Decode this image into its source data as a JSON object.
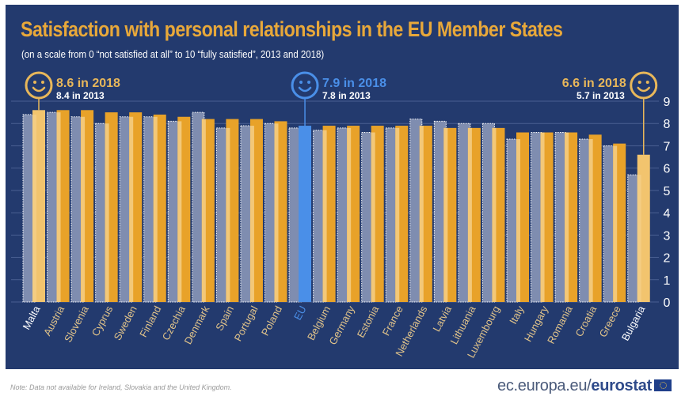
{
  "header": {
    "title": "Satisfaction with personal relationships in the EU Member States",
    "subtitle": "(on a scale from 0 “not satisfied at all” to 10 “fully satisfied”, 2013 and 2018)"
  },
  "callouts": [
    {
      "country": "Malta",
      "line1": "8.6 in 2018",
      "line2": "8.4 in 2013",
      "icon": "smiley-icon",
      "color": "#e8b75a"
    },
    {
      "country": "EU",
      "line1": "7.9 in 2018",
      "line2": "7.8 in 2013",
      "icon": "smiley-icon",
      "color": "#4a8fe8"
    },
    {
      "country": "Bulgaria",
      "line1": "6.6 in 2018",
      "line2": "5.7 in 2013",
      "icon": "smiley-icon",
      "color": "#e8b75a"
    }
  ],
  "colors": {
    "background": "#233a6e",
    "bar_2013": "#7f8db0",
    "bar_2018": "#e8a229",
    "bar_2018_light": "#f2c46e",
    "bar_eu": "#4a8fe8",
    "accent": "#e8a83a",
    "label_country": "#e2c48a",
    "label_highlight": "#ffffff",
    "label_eu": "#4a8fe8"
  },
  "chart_data": {
    "type": "bar",
    "title": "Satisfaction with personal relationships in the EU Member States",
    "subtitle": "(on a scale from 0 “not satisfied at all” to 10 “fully satisfied”, 2013 and 2018)",
    "xlabel": "",
    "ylabel": "",
    "ylim": [
      0,
      9
    ],
    "yticks": [
      0,
      1,
      2,
      3,
      4,
      5,
      6,
      7,
      8,
      9
    ],
    "grid": true,
    "categories": [
      "Malta",
      "Austria",
      "Slovenia",
      "Cyprus",
      "Sweden",
      "Finland",
      "Czechia",
      "Denmark",
      "Spain",
      "Portugal",
      "Poland",
      "EU",
      "Belgium",
      "Germany",
      "Estonia",
      "France",
      "Netherlands",
      "Latvia",
      "Lithuania",
      "Luxembourg",
      "Italy",
      "Hungary",
      "Romania",
      "Croatia",
      "Greece",
      "Bulgaria"
    ],
    "highlighted": [
      "Malta",
      "EU",
      "Bulgaria"
    ],
    "series": [
      {
        "name": "2013",
        "values": [
          8.4,
          8.5,
          8.3,
          8.0,
          8.3,
          8.3,
          8.1,
          8.5,
          7.8,
          7.9,
          8.0,
          7.8,
          7.7,
          7.8,
          7.6,
          7.8,
          8.2,
          8.1,
          8.0,
          8.0,
          7.3,
          7.6,
          7.6,
          7.3,
          7.0,
          5.7
        ]
      },
      {
        "name": "2018",
        "values": [
          8.6,
          8.6,
          8.6,
          8.5,
          8.5,
          8.4,
          8.3,
          8.2,
          8.2,
          8.2,
          8.1,
          7.9,
          7.9,
          7.9,
          7.9,
          7.9,
          7.9,
          7.8,
          7.8,
          7.8,
          7.6,
          7.6,
          7.6,
          7.5,
          7.1,
          6.6
        ]
      }
    ]
  },
  "footer": {
    "note": "Note: Data not available for Ireland, Slovakia and the United Kingdom.",
    "site_prefix": "ec.europa.eu/",
    "site_brand": "eurostat"
  }
}
